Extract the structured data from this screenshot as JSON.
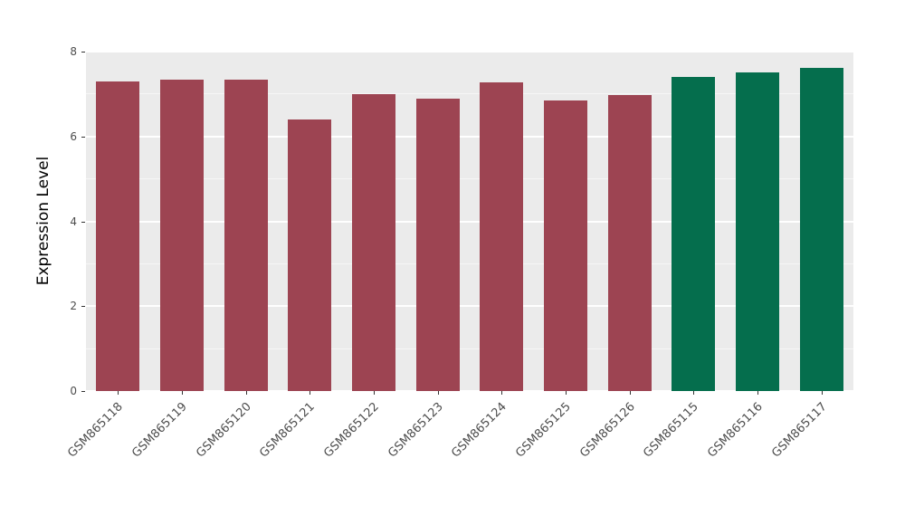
{
  "chart_data": {
    "type": "bar",
    "title": "",
    "xlabel": "",
    "ylabel": "Expression Level",
    "categories": [
      "GSM865118",
      "GSM865119",
      "GSM865120",
      "GSM865121",
      "GSM865122",
      "GSM865123",
      "GSM865124",
      "GSM865125",
      "GSM865126",
      "GSM865115",
      "GSM865116",
      "GSM865117"
    ],
    "values": [
      7.3,
      7.33,
      7.33,
      6.4,
      7.0,
      6.9,
      7.27,
      6.85,
      6.98,
      7.4,
      7.5,
      7.62
    ],
    "bar_colors": [
      "#9d4452",
      "#9d4452",
      "#9d4452",
      "#9d4452",
      "#9d4452",
      "#9d4452",
      "#9d4452",
      "#9d4452",
      "#9d4452",
      "#056e4d",
      "#056e4d",
      "#056e4d"
    ],
    "palette": {
      "group1": "#9d4452",
      "group2": "#056e4d"
    },
    "ylim": [
      0,
      8
    ],
    "yticks": [
      0,
      2,
      4,
      6,
      8
    ],
    "yticks_minor": [
      1,
      3,
      5,
      7
    ],
    "grid": "on",
    "legend": "none",
    "panel_background": "#ebebeb"
  }
}
